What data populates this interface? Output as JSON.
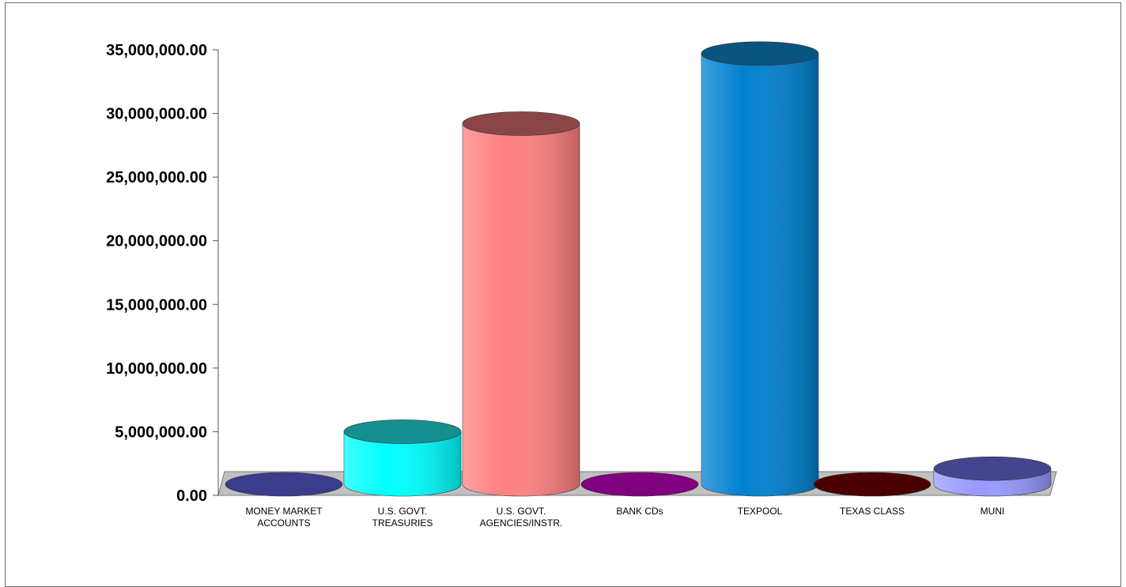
{
  "chart_data": {
    "type": "bar",
    "style": "3d-cylinder",
    "categories": [
      [
        "MONEY MARKET",
        "ACCOUNTS"
      ],
      [
        "U.S. GOVT.",
        "TREASURIES"
      ],
      [
        "U.S. GOVT.",
        "AGENCIES/INSTR."
      ],
      [
        "BANK CDs"
      ],
      [
        "TEXPOOL"
      ],
      [
        "TEXAS CLASS"
      ],
      [
        "MUNI"
      ]
    ],
    "values": [
      600000,
      5000000,
      29200000,
      0,
      34700000,
      0,
      2100000
    ],
    "colors": {
      "body": [
        "#6666cc",
        "#00ffff",
        "#ff8080",
        "#800080",
        "#0080d0",
        "#660000",
        "#9999ff"
      ],
      "top": [
        "#3c3c8c",
        "#149090",
        "#8a4646",
        "#800080",
        "#0a5580",
        "#4a0000",
        "#45458f"
      ]
    },
    "ylim": [
      0,
      35000000
    ],
    "yticks": [
      "0.00",
      "5,000,000.00",
      "10,000,000.00",
      "15,000,000.00",
      "20,000,000.00",
      "25,000,000.00",
      "30,000,000.00",
      "35,000,000.00"
    ],
    "ytick_values": [
      0,
      5000000,
      10000000,
      15000000,
      20000000,
      25000000,
      30000000,
      35000000
    ],
    "grid": false,
    "legend": "none",
    "title": "",
    "xlabel": "",
    "ylabel": ""
  }
}
